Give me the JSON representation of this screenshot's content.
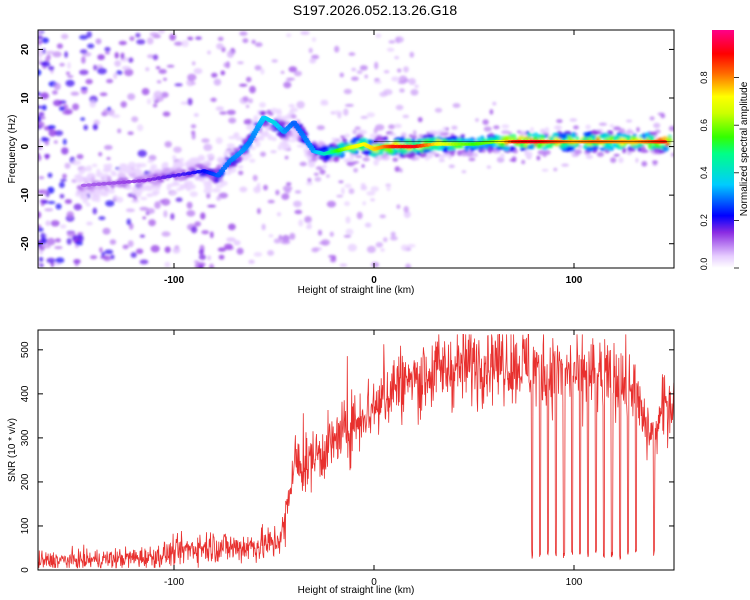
{
  "title": "S197.2026.052.13.26.G18",
  "chart_data": [
    {
      "type": "heatmap",
      "title": "S197.2026.052.13.26.G18",
      "xlabel": "Height of straight line (km)",
      "ylabel": "Frequency (Hz)",
      "xlim": [
        -168,
        150
      ],
      "ylim": [
        -25,
        24
      ],
      "xticks": [
        -100,
        0,
        100
      ],
      "yticks": [
        -20,
        -10,
        0,
        10,
        20
      ],
      "ridge": {
        "x": [
          -145,
          -130,
          -115,
          -100,
          -85,
          -78,
          -72,
          -66,
          -62,
          -58,
          -55,
          -50,
          -45,
          -40,
          -35,
          -30,
          -25,
          -20,
          -15,
          -10,
          -5,
          0,
          5,
          10,
          20,
          30,
          40,
          50,
          60,
          70,
          80,
          90,
          100,
          110,
          120,
          130,
          140,
          146
        ],
        "frequency": [
          -8,
          -7.5,
          -7,
          -6,
          -5,
          -6,
          -3,
          -1,
          1,
          4,
          6,
          5,
          3,
          5,
          2,
          -1,
          -1.5,
          -1,
          -0.5,
          0,
          0.5,
          -0.5,
          0,
          0,
          0,
          0.5,
          0.5,
          0.5,
          1,
          1,
          1,
          1,
          1,
          1,
          1,
          1,
          1,
          1
        ],
        "amplitude": [
          0.12,
          0.13,
          0.15,
          0.18,
          0.22,
          0.28,
          0.3,
          0.32,
          0.3,
          0.32,
          0.35,
          0.38,
          0.32,
          0.28,
          0.3,
          0.32,
          0.4,
          0.5,
          0.6,
          0.7,
          0.72,
          0.75,
          0.8,
          0.88,
          0.92,
          0.75,
          0.62,
          0.55,
          0.6,
          0.88,
          0.92,
          0.85,
          0.78,
          0.82,
          0.8,
          0.78,
          0.85,
          0.88
        ]
      },
      "colorbar": {
        "label": "Normalized spectral amplitude",
        "ticks": [
          0.0,
          0.2,
          0.4,
          0.6,
          0.8
        ],
        "range": [
          0,
          1
        ]
      }
    },
    {
      "type": "line",
      "xlabel": "Height of straight line (km)",
      "ylabel": "SNR (10 * v/v)",
      "xlim": [
        -168,
        150
      ],
      "ylim": [
        0,
        545
      ],
      "xticks": [
        -100,
        0,
        100
      ],
      "yticks": [
        0,
        100,
        200,
        300,
        400,
        500
      ],
      "color": "#e8302e",
      "series": [
        {
          "name": "SNR",
          "x": [
            -168,
            -150,
            -130,
            -110,
            -100,
            -90,
            -80,
            -70,
            -60,
            -50,
            -45,
            -42,
            -40,
            -35,
            -30,
            -25,
            -20,
            -15,
            -10,
            -5,
            0,
            5,
            10,
            20,
            30,
            40,
            50,
            60,
            70,
            80,
            90,
            100,
            110,
            120,
            130,
            135,
            140,
            145,
            150
          ],
          "values": [
            20,
            22,
            25,
            30,
            40,
            50,
            55,
            50,
            55,
            60,
            90,
            180,
            250,
            230,
            260,
            270,
            290,
            310,
            330,
            360,
            370,
            390,
            420,
            430,
            450,
            460,
            470,
            480,
            470,
            460,
            450,
            445,
            440,
            430,
            420,
            330,
            300,
            370,
            390
          ]
        }
      ],
      "dropouts_x": [
        79,
        83,
        87,
        91,
        95,
        99,
        103,
        107,
        111,
        115,
        119,
        123,
        127,
        131,
        140
      ]
    }
  ]
}
